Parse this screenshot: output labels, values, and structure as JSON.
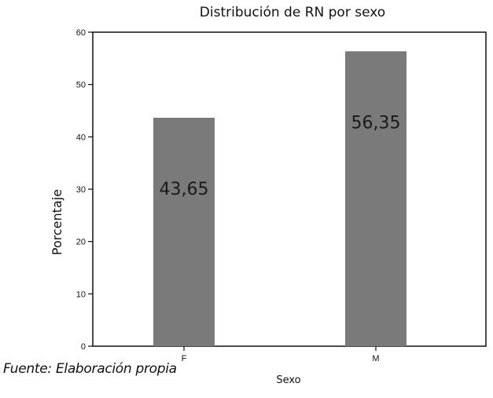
{
  "chart_data": {
    "type": "bar",
    "title": "Distribución  de RN  por sexo",
    "xlabel": "Sexo",
    "ylabel": "Porcentaje",
    "categories": [
      "F",
      "M"
    ],
    "values": [
      43.65,
      56.35
    ],
    "data_labels": [
      "43,65",
      "56,35"
    ],
    "ylim": [
      0,
      60
    ],
    "yticks": [
      0,
      10,
      20,
      30,
      40,
      50,
      60
    ],
    "grid": false,
    "legend": "none",
    "bar_color": "#7a7a7a"
  },
  "source_note": "Fuente: Elaboración propia"
}
